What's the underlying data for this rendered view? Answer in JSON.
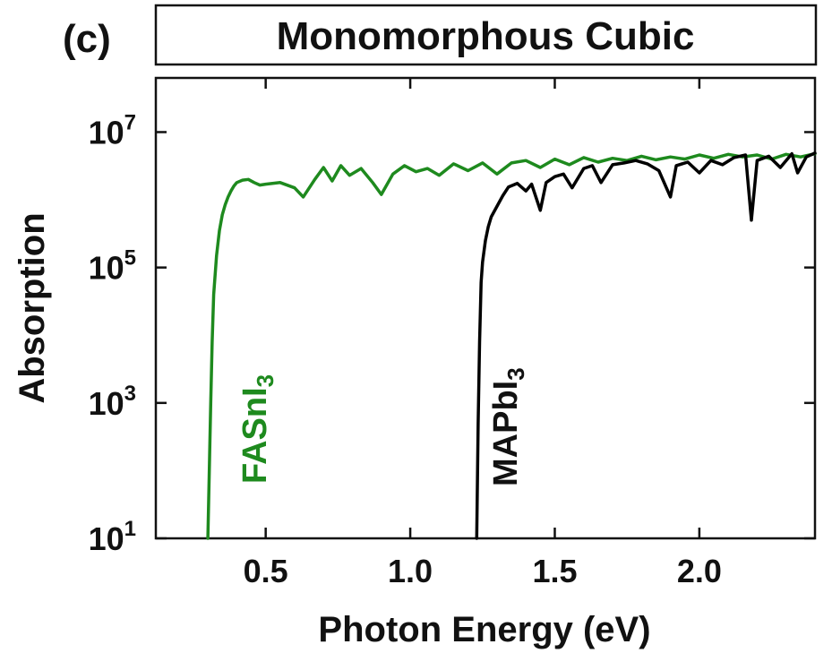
{
  "panel_label": "(c)",
  "chart_data": {
    "type": "line",
    "title": "Monomorphous Cubic",
    "xlabel": "Photon Energy (eV)",
    "ylabel": "Absorption",
    "xlim": [
      0.12,
      2.4
    ],
    "ylim_log10": [
      1,
      7.8
    ],
    "y_scale": "log",
    "x_ticks": [
      {
        "value": 0.5,
        "label": "0.5"
      },
      {
        "value": 1.0,
        "label": "1.0"
      },
      {
        "value": 1.5,
        "label": "1.5"
      },
      {
        "value": 2.0,
        "label": "2.0"
      }
    ],
    "y_ticks": [
      {
        "exp": 1,
        "base": "10",
        "power": "1"
      },
      {
        "exp": 3,
        "base": "10",
        "power": "3"
      },
      {
        "exp": 5,
        "base": "10",
        "power": "5"
      },
      {
        "exp": 7,
        "base": "10",
        "power": "7"
      }
    ],
    "series": [
      {
        "name": "FASnI",
        "name_sub": "3",
        "color": "#1e8a1e",
        "x": [
          0.3,
          0.305,
          0.31,
          0.315,
          0.32,
          0.33,
          0.34,
          0.35,
          0.36,
          0.37,
          0.38,
          0.39,
          0.4,
          0.42,
          0.44,
          0.46,
          0.48,
          0.5,
          0.55,
          0.6,
          0.63,
          0.67,
          0.7,
          0.73,
          0.76,
          0.79,
          0.83,
          0.87,
          0.9,
          0.94,
          0.98,
          1.02,
          1.06,
          1.1,
          1.15,
          1.2,
          1.25,
          1.3,
          1.35,
          1.4,
          1.45,
          1.5,
          1.55,
          1.6,
          1.65,
          1.7,
          1.75,
          1.8,
          1.85,
          1.9,
          1.95,
          2.0,
          2.05,
          2.1,
          2.15,
          2.2,
          2.25,
          2.3,
          2.35,
          2.4
        ],
        "y": [
          10,
          100,
          1000,
          8000,
          40000,
          150000,
          350000,
          600000,
          850000,
          1100000,
          1350000,
          1600000,
          1800000,
          1950000,
          2000000,
          1800000,
          1650000,
          1700000,
          1800000,
          1500000,
          1100000,
          2000000,
          3000000,
          1900000,
          3200000,
          2300000,
          2900000,
          1800000,
          1200000,
          2400000,
          3200000,
          2600000,
          2900000,
          2300000,
          3400000,
          2700000,
          3500000,
          2400000,
          3500000,
          3800000,
          3000000,
          4000000,
          3300000,
          4200000,
          3600000,
          4100000,
          3800000,
          4400000,
          3900000,
          4300000,
          4000000,
          4600000,
          4100000,
          4700000,
          4300000,
          4600000,
          4000000,
          4700000,
          4300000,
          4800000
        ]
      },
      {
        "name": "MAPbI",
        "name_sub": "3",
        "color": "#000000",
        "x": [
          1.23,
          1.235,
          1.24,
          1.245,
          1.25,
          1.26,
          1.27,
          1.28,
          1.3,
          1.32,
          1.34,
          1.37,
          1.4,
          1.42,
          1.45,
          1.47,
          1.5,
          1.53,
          1.56,
          1.6,
          1.63,
          1.66,
          1.7,
          1.74,
          1.78,
          1.82,
          1.86,
          1.9,
          1.92,
          1.96,
          2.0,
          2.04,
          2.08,
          2.12,
          2.16,
          2.18,
          2.2,
          2.24,
          2.28,
          2.32,
          2.34,
          2.37,
          2.4
        ],
        "y": [
          10,
          500,
          8000,
          60000,
          120000,
          250000,
          400000,
          560000,
          800000,
          1150000,
          1550000,
          1750000,
          1350000,
          1700000,
          700000,
          1800000,
          2200000,
          2400000,
          1500000,
          2900000,
          3200000,
          1800000,
          3300000,
          3500000,
          3800000,
          3400000,
          2700000,
          1100000,
          3200000,
          3600000,
          2500000,
          3800000,
          3300000,
          4200000,
          4600000,
          500000,
          3800000,
          4400000,
          3000000,
          4800000,
          2500000,
          4300000,
          4900000
        ]
      }
    ],
    "grid": false,
    "legend": "inline labels"
  }
}
